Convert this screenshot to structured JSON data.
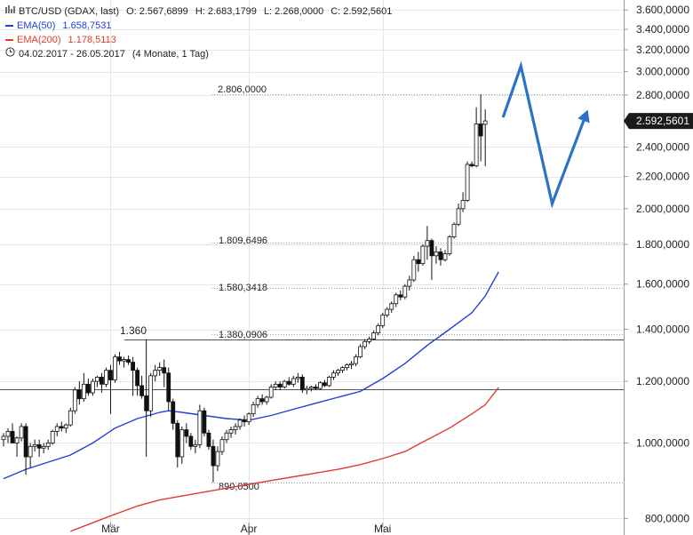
{
  "legend": {
    "symbol": "BTC/USD (GDAX, last)",
    "open": "O: 2.567,6899",
    "high": "H: 2.683,1799",
    "low": "L: 2.268,0000",
    "close": "C: 2.592,5601",
    "ema50_label": "EMA(50)",
    "ema50_value": "1.658,7531",
    "ema50_color": "#1f3fd6",
    "ema200_label": "EMA(200)",
    "ema200_value": "1.178,5113",
    "ema200_color": "#e03b2e",
    "range": "04.02.2017 - 26.05.2017",
    "period": "(4 Monate, 1 Tag)"
  },
  "chart_data": {
    "type": "candlestick",
    "scale": "log",
    "ylim": [
      780,
      3650
    ],
    "yticks": [
      {
        "value": 3600,
        "label": "3.600,0000"
      },
      {
        "value": 3400,
        "label": "3.400,0000"
      },
      {
        "value": 3200,
        "label": "3.200,0000"
      },
      {
        "value": 3000,
        "label": "3.000,0000"
      },
      {
        "value": 2800,
        "label": "2.800,0000"
      },
      {
        "value": 2400,
        "label": "2.400,0000"
      },
      {
        "value": 2200,
        "label": "2.200,0000"
      },
      {
        "value": 2000,
        "label": "2.000,0000"
      },
      {
        "value": 1800,
        "label": "1.800,0000"
      },
      {
        "value": 1600,
        "label": "1.600,0000"
      },
      {
        "value": 1400,
        "label": "1.400,0000"
      },
      {
        "value": 1200,
        "label": "1.200,0000"
      },
      {
        "value": 1000,
        "label": "1.000,0000"
      },
      {
        "value": 800,
        "label": "800,0000"
      }
    ],
    "xlabels": [
      {
        "label": "Mär",
        "index": 24
      },
      {
        "label": "Apr",
        "index": 55
      },
      {
        "label": "Mai",
        "index": 85
      }
    ],
    "last_price": {
      "value": 2592.5601,
      "label": "2.592,5601"
    },
    "candles": [
      {
        "o": 1010,
        "h": 1030,
        "l": 990,
        "c": 1020
      },
      {
        "o": 1020,
        "h": 1045,
        "l": 1000,
        "c": 1035
      },
      {
        "o": 1035,
        "h": 1060,
        "l": 1010,
        "c": 1000
      },
      {
        "o": 1000,
        "h": 1020,
        "l": 960,
        "c": 1015
      },
      {
        "o": 1015,
        "h": 1060,
        "l": 1005,
        "c": 1050
      },
      {
        "o": 1050,
        "h": 1060,
        "l": 910,
        "c": 960
      },
      {
        "o": 960,
        "h": 1000,
        "l": 930,
        "c": 990
      },
      {
        "o": 990,
        "h": 1010,
        "l": 975,
        "c": 995
      },
      {
        "o": 995,
        "h": 1010,
        "l": 960,
        "c": 985
      },
      {
        "o": 985,
        "h": 1000,
        "l": 970,
        "c": 990
      },
      {
        "o": 990,
        "h": 1010,
        "l": 980,
        "c": 1000
      },
      {
        "o": 1000,
        "h": 1040,
        "l": 995,
        "c": 1035
      },
      {
        "o": 1035,
        "h": 1060,
        "l": 1020,
        "c": 1050
      },
      {
        "o": 1050,
        "h": 1065,
        "l": 1035,
        "c": 1045
      },
      {
        "o": 1045,
        "h": 1060,
        "l": 1030,
        "c": 1055
      },
      {
        "o": 1055,
        "h": 1110,
        "l": 1050,
        "c": 1100
      },
      {
        "o": 1100,
        "h": 1180,
        "l": 1090,
        "c": 1170
      },
      {
        "o": 1170,
        "h": 1200,
        "l": 1120,
        "c": 1140
      },
      {
        "o": 1140,
        "h": 1230,
        "l": 1130,
        "c": 1190
      },
      {
        "o": 1190,
        "h": 1210,
        "l": 1150,
        "c": 1160
      },
      {
        "o": 1160,
        "h": 1210,
        "l": 1150,
        "c": 1200
      },
      {
        "o": 1200,
        "h": 1220,
        "l": 1180,
        "c": 1215
      },
      {
        "o": 1215,
        "h": 1230,
        "l": 1160,
        "c": 1190
      },
      {
        "o": 1190,
        "h": 1250,
        "l": 1180,
        "c": 1240
      },
      {
        "o": 1240,
        "h": 1260,
        "l": 1090,
        "c": 1205
      },
      {
        "o": 1205,
        "h": 1300,
        "l": 1195,
        "c": 1290
      },
      {
        "o": 1290,
        "h": 1310,
        "l": 1260,
        "c": 1275
      },
      {
        "o": 1275,
        "h": 1290,
        "l": 1250,
        "c": 1280
      },
      {
        "o": 1280,
        "h": 1295,
        "l": 1260,
        "c": 1270
      },
      {
        "o": 1270,
        "h": 1290,
        "l": 1150,
        "c": 1240
      },
      {
        "o": 1240,
        "h": 1250,
        "l": 1150,
        "c": 1185
      },
      {
        "o": 1185,
        "h": 1220,
        "l": 1140,
        "c": 1150
      },
      {
        "o": 1150,
        "h": 1360,
        "l": 960,
        "c": 1100
      },
      {
        "o": 1100,
        "h": 1230,
        "l": 1080,
        "c": 1220
      },
      {
        "o": 1220,
        "h": 1260,
        "l": 1200,
        "c": 1240
      },
      {
        "o": 1240,
        "h": 1270,
        "l": 1220,
        "c": 1250
      },
      {
        "o": 1250,
        "h": 1280,
        "l": 1180,
        "c": 1230
      },
      {
        "o": 1230,
        "h": 1250,
        "l": 1100,
        "c": 1130
      },
      {
        "o": 1130,
        "h": 1140,
        "l": 1040,
        "c": 1060
      },
      {
        "o": 1060,
        "h": 1070,
        "l": 930,
        "c": 960
      },
      {
        "o": 960,
        "h": 1050,
        "l": 940,
        "c": 1040
      },
      {
        "o": 1040,
        "h": 1060,
        "l": 1000,
        "c": 1020
      },
      {
        "o": 1020,
        "h": 1030,
        "l": 980,
        "c": 990
      },
      {
        "o": 990,
        "h": 1010,
        "l": 970,
        "c": 995
      },
      {
        "o": 995,
        "h": 1120,
        "l": 985,
        "c": 1100
      },
      {
        "o": 1100,
        "h": 1110,
        "l": 1020,
        "c": 1030
      },
      {
        "o": 1030,
        "h": 1040,
        "l": 980,
        "c": 990
      },
      {
        "o": 990,
        "h": 1010,
        "l": 890,
        "c": 935
      },
      {
        "o": 935,
        "h": 990,
        "l": 920,
        "c": 975
      },
      {
        "o": 975,
        "h": 1020,
        "l": 965,
        "c": 1010
      },
      {
        "o": 1010,
        "h": 1040,
        "l": 1000,
        "c": 1030
      },
      {
        "o": 1030,
        "h": 1050,
        "l": 1015,
        "c": 1040
      },
      {
        "o": 1040,
        "h": 1060,
        "l": 1025,
        "c": 1050
      },
      {
        "o": 1050,
        "h": 1075,
        "l": 1040,
        "c": 1070
      },
      {
        "o": 1070,
        "h": 1085,
        "l": 1050,
        "c": 1065
      },
      {
        "o": 1065,
        "h": 1095,
        "l": 1055,
        "c": 1090
      },
      {
        "o": 1090,
        "h": 1130,
        "l": 1080,
        "c": 1120
      },
      {
        "o": 1120,
        "h": 1150,
        "l": 1110,
        "c": 1140
      },
      {
        "o": 1140,
        "h": 1155,
        "l": 1120,
        "c": 1130
      },
      {
        "o": 1130,
        "h": 1150,
        "l": 1120,
        "c": 1145
      },
      {
        "o": 1145,
        "h": 1190,
        "l": 1140,
        "c": 1180
      },
      {
        "o": 1180,
        "h": 1200,
        "l": 1170,
        "c": 1190
      },
      {
        "o": 1190,
        "h": 1200,
        "l": 1170,
        "c": 1180
      },
      {
        "o": 1180,
        "h": 1205,
        "l": 1175,
        "c": 1200
      },
      {
        "o": 1200,
        "h": 1215,
        "l": 1185,
        "c": 1190
      },
      {
        "o": 1190,
        "h": 1220,
        "l": 1180,
        "c": 1210
      },
      {
        "o": 1210,
        "h": 1230,
        "l": 1195,
        "c": 1215
      },
      {
        "o": 1215,
        "h": 1225,
        "l": 1160,
        "c": 1170
      },
      {
        "o": 1170,
        "h": 1185,
        "l": 1155,
        "c": 1175
      },
      {
        "o": 1175,
        "h": 1185,
        "l": 1165,
        "c": 1180
      },
      {
        "o": 1180,
        "h": 1190,
        "l": 1170,
        "c": 1175
      },
      {
        "o": 1175,
        "h": 1200,
        "l": 1170,
        "c": 1195
      },
      {
        "o": 1195,
        "h": 1205,
        "l": 1180,
        "c": 1185
      },
      {
        "o": 1185,
        "h": 1220,
        "l": 1180,
        "c": 1215
      },
      {
        "o": 1215,
        "h": 1240,
        "l": 1205,
        "c": 1230
      },
      {
        "o": 1230,
        "h": 1245,
        "l": 1220,
        "c": 1240
      },
      {
        "o": 1240,
        "h": 1255,
        "l": 1230,
        "c": 1250
      },
      {
        "o": 1250,
        "h": 1265,
        "l": 1240,
        "c": 1260
      },
      {
        "o": 1260,
        "h": 1275,
        "l": 1245,
        "c": 1265
      },
      {
        "o": 1265,
        "h": 1300,
        "l": 1255,
        "c": 1290
      },
      {
        "o": 1290,
        "h": 1340,
        "l": 1285,
        "c": 1330
      },
      {
        "o": 1330,
        "h": 1360,
        "l": 1320,
        "c": 1350
      },
      {
        "o": 1350,
        "h": 1370,
        "l": 1340,
        "c": 1360
      },
      {
        "o": 1360,
        "h": 1395,
        "l": 1355,
        "c": 1385
      },
      {
        "o": 1385,
        "h": 1425,
        "l": 1375,
        "c": 1415
      },
      {
        "o": 1415,
        "h": 1470,
        "l": 1405,
        "c": 1460
      },
      {
        "o": 1460,
        "h": 1495,
        "l": 1450,
        "c": 1485
      },
      {
        "o": 1485,
        "h": 1520,
        "l": 1470,
        "c": 1510
      },
      {
        "o": 1510,
        "h": 1560,
        "l": 1495,
        "c": 1550
      },
      {
        "o": 1550,
        "h": 1570,
        "l": 1525,
        "c": 1540
      },
      {
        "o": 1540,
        "h": 1600,
        "l": 1530,
        "c": 1590
      },
      {
        "o": 1590,
        "h": 1640,
        "l": 1570,
        "c": 1620
      },
      {
        "o": 1620,
        "h": 1740,
        "l": 1610,
        "c": 1720
      },
      {
        "o": 1720,
        "h": 1760,
        "l": 1660,
        "c": 1700
      },
      {
        "o": 1700,
        "h": 1800,
        "l": 1690,
        "c": 1790
      },
      {
        "o": 1790,
        "h": 1900,
        "l": 1720,
        "c": 1820
      },
      {
        "o": 1820,
        "h": 1830,
        "l": 1620,
        "c": 1740
      },
      {
        "o": 1740,
        "h": 1790,
        "l": 1700,
        "c": 1760
      },
      {
        "o": 1760,
        "h": 1780,
        "l": 1690,
        "c": 1720
      },
      {
        "o": 1720,
        "h": 1770,
        "l": 1710,
        "c": 1750
      },
      {
        "o": 1750,
        "h": 1850,
        "l": 1740,
        "c": 1840
      },
      {
        "o": 1840,
        "h": 1920,
        "l": 1830,
        "c": 1910
      },
      {
        "o": 1910,
        "h": 2030,
        "l": 1900,
        "c": 2000
      },
      {
        "o": 2000,
        "h": 2100,
        "l": 1980,
        "c": 2050
      },
      {
        "o": 2050,
        "h": 2300,
        "l": 2040,
        "c": 2280
      },
      {
        "o": 2280,
        "h": 2300,
        "l": 2260,
        "c": 2270
      },
      {
        "o": 2270,
        "h": 2700,
        "l": 2260,
        "c": 2570
      },
      {
        "o": 2570,
        "h": 2806,
        "l": 2300,
        "c": 2480
      },
      {
        "o": 2567,
        "h": 2683,
        "l": 2268,
        "c": 2593
      }
    ],
    "ema50": [
      [
        0,
        900
      ],
      [
        5,
        925
      ],
      [
        10,
        945
      ],
      [
        15,
        965
      ],
      [
        20,
        1000
      ],
      [
        25,
        1045
      ],
      [
        30,
        1075
      ],
      [
        35,
        1095
      ],
      [
        37,
        1100
      ],
      [
        40,
        1095
      ],
      [
        45,
        1085
      ],
      [
        50,
        1075
      ],
      [
        55,
        1070
      ],
      [
        60,
        1085
      ],
      [
        65,
        1105
      ],
      [
        70,
        1125
      ],
      [
        75,
        1145
      ],
      [
        80,
        1165
      ],
      [
        85,
        1210
      ],
      [
        90,
        1265
      ],
      [
        95,
        1335
      ],
      [
        100,
        1400
      ],
      [
        105,
        1470
      ],
      [
        108,
        1545
      ],
      [
        111,
        1659
      ]
    ],
    "ema200": [
      [
        15,
        770
      ],
      [
        20,
        790
      ],
      [
        25,
        810
      ],
      [
        30,
        830
      ],
      [
        35,
        845
      ],
      [
        40,
        855
      ],
      [
        45,
        865
      ],
      [
        50,
        875
      ],
      [
        55,
        885
      ],
      [
        60,
        895
      ],
      [
        65,
        905
      ],
      [
        70,
        915
      ],
      [
        75,
        925
      ],
      [
        80,
        938
      ],
      [
        85,
        955
      ],
      [
        90,
        975
      ],
      [
        95,
        1010
      ],
      [
        100,
        1045
      ],
      [
        105,
        1090
      ],
      [
        108,
        1120
      ],
      [
        111,
        1179
      ]
    ],
    "hlines": [
      {
        "value": 2806,
        "label": "2.806,0000",
        "style": "dotted"
      },
      {
        "value": 1809.6496,
        "label": "1.809,6496",
        "style": "dotted"
      },
      {
        "value": 1580.3418,
        "label": "1.580,3418",
        "style": "dotted"
      },
      {
        "value": 1380.0906,
        "label": "1.380,0906",
        "style": "dotted"
      },
      {
        "value": 890.05,
        "label": "890,0500",
        "style": "dotted"
      },
      {
        "value": 1360,
        "label": "1.360",
        "style": "solid"
      },
      {
        "value": 1173,
        "label": "",
        "style": "solid"
      }
    ],
    "projection": [
      {
        "i": 112,
        "v": 2620
      },
      {
        "i": 116,
        "v": 3050
      },
      {
        "i": 123,
        "v": 2030
      },
      {
        "i": 131,
        "v": 2680
      }
    ]
  }
}
